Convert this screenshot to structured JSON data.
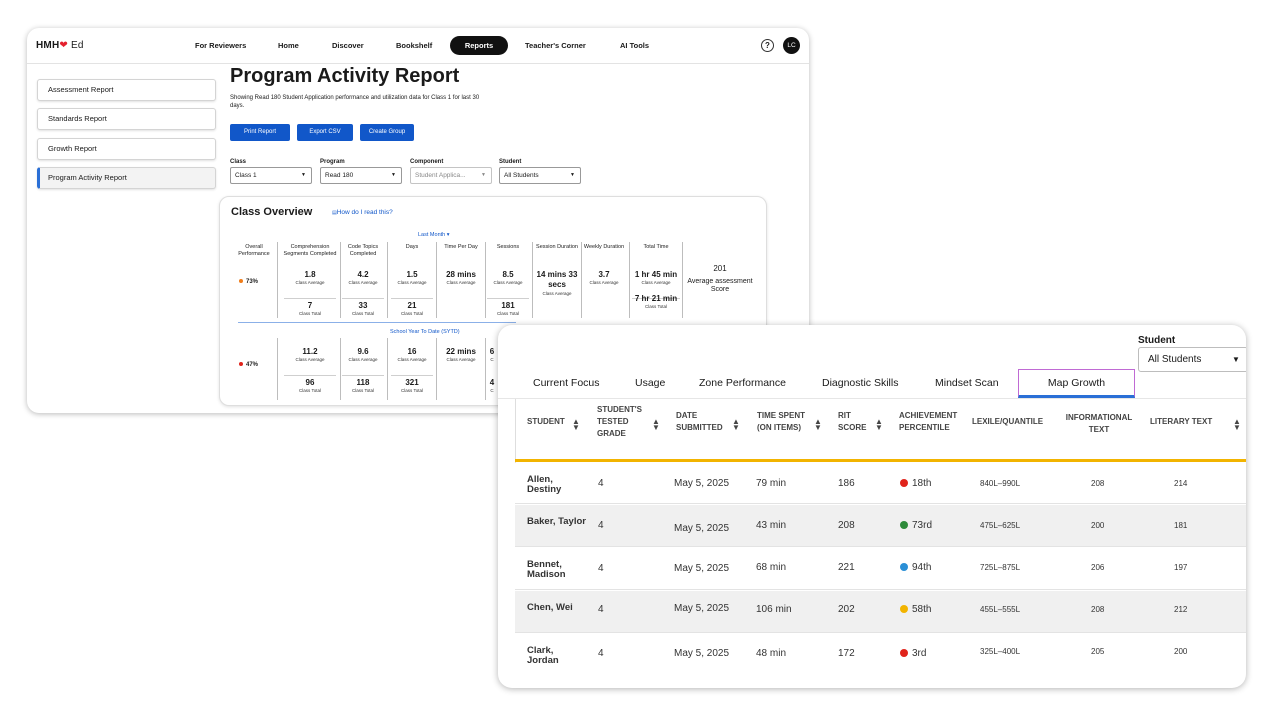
{
  "back": {
    "logo": {
      "text": "HMH",
      "heart": "❤",
      "ed": "Ed"
    },
    "nav": [
      "For Reviewers",
      "Home",
      "Discover",
      "Bookshelf",
      "Reports",
      "Teacher's Corner",
      "AI Tools"
    ],
    "help": "?",
    "avatar": "LC",
    "sidebar": [
      "Assessment Report",
      "Standards Report",
      "Growth Report",
      "Program Activity Report"
    ],
    "title": "Program Activity Report",
    "desc": "Showing Read 180 Student Application performance and utilization data for Class 1 for last 30 days.",
    "buttons": [
      "Print Report",
      "Export CSV",
      "Create Group"
    ],
    "filters": [
      {
        "label": "Class",
        "value": "Class 1"
      },
      {
        "label": "Program",
        "value": "Read 180"
      },
      {
        "label": "Component",
        "value": "Student Applica..."
      },
      {
        "label": "Student",
        "value": "All Students"
      }
    ],
    "overview": {
      "title": "Class Overview",
      "link": "How do I read this?",
      "last_month": "Last Month ▾",
      "sytd": "School Year To Date (SYTD)",
      "headers": [
        "Overall Performance",
        "Comprehension Segments Completed",
        "Code Topics Completed",
        "Days",
        "Time Per Day",
        "Sessions",
        "Session Duration",
        "Weekly Duration",
        "Total Time"
      ],
      "lm_perf": "73%",
      "lm_avg": [
        "1.8",
        "4.2",
        "1.5",
        "28 mins",
        "8.5",
        "14 mins 33 secs",
        "3.7",
        "1 hr 45 min"
      ],
      "lm_total": [
        "7",
        "33",
        "21",
        "181",
        "7 hr 21 min"
      ],
      "sytd_perf": "47%",
      "sytd_avg": [
        "11.2",
        "9.6",
        "16",
        "22 mins",
        "6"
      ],
      "sytd_total": [
        "96",
        "118",
        "321",
        "4"
      ],
      "class_average": "Class Average",
      "class_total": "Class Total",
      "score_value": "201",
      "score_label": "Average assessment Score",
      "partial_c": "C"
    }
  },
  "front": {
    "student_label": "Student",
    "student_value": "All Students",
    "tabs": [
      "Current Focus",
      "Usage",
      "Zone Performance",
      "Diagnostic Skills",
      "Mindset Scan",
      "Map Growth"
    ],
    "columns": [
      "Student",
      "Student's Tested Grade",
      "Date Submitted",
      "Time Spent (on items)",
      "RIT Score",
      "Achievement Percentile",
      "Lexile/Quantile",
      "Informational Text",
      "Literary Text"
    ],
    "rows": [
      {
        "name": "Allen, Destiny",
        "grade": "4",
        "date": "May 5, 2025",
        "time": "79 min",
        "rit": "186",
        "pct": "18th",
        "pct_color": "#e0231b",
        "lexile": "840L–990L",
        "info": "208",
        "lit": "214"
      },
      {
        "name": "Baker, Taylor",
        "grade": "4",
        "date": "May 5, 2025",
        "time": "43 min",
        "rit": "208",
        "pct": "73rd",
        "pct_color": "#2e8b3a",
        "lexile": "475L–625L",
        "info": "200",
        "lit": "181"
      },
      {
        "name": "Bennet, Madison",
        "grade": "4",
        "date": "May 5, 2025",
        "time": "68 min",
        "rit": "221",
        "pct": "94th",
        "pct_color": "#2a8fd6",
        "lexile": "725L–875L",
        "info": "206",
        "lit": "197"
      },
      {
        "name": "Chen, Wei",
        "grade": "4",
        "date": "May 5, 2025",
        "time": "106 min",
        "rit": "202",
        "pct": "58th",
        "pct_color": "#f2b400",
        "lexile": "455L–555L",
        "info": "208",
        "lit": "212"
      },
      {
        "name": "Clark, Jordan",
        "grade": "4",
        "date": "May 5, 2025",
        "time": "48 min",
        "rit": "172",
        "pct": "3rd",
        "pct_color": "#e0231b",
        "lexile": "325L–400L",
        "info": "205",
        "lit": "200"
      }
    ]
  },
  "colors": {
    "brand_blue": "#1157c9",
    "nav_active": "#111111",
    "yellow": "#f2b400",
    "orange_dot": "#f07d1a",
    "red_dot": "#e0231b"
  }
}
